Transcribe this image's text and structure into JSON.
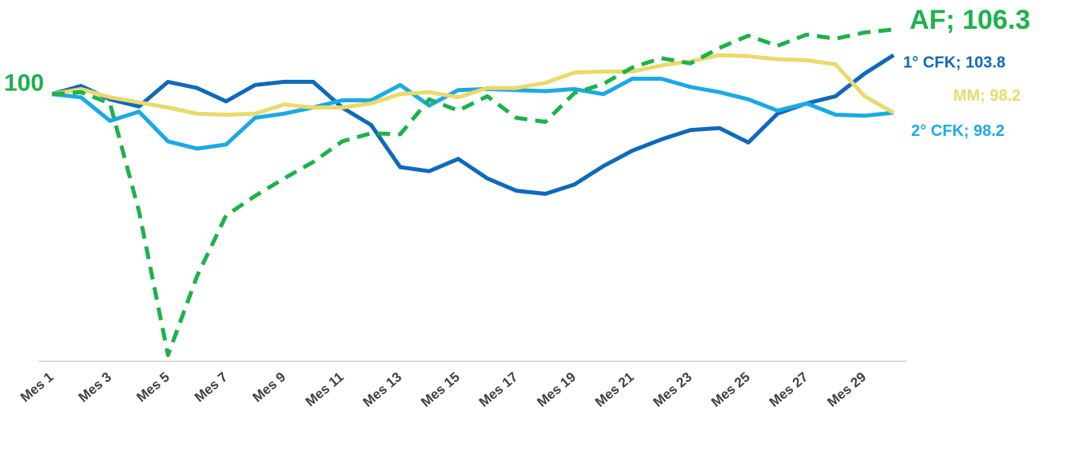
{
  "chart_data": {
    "type": "line",
    "categories": [
      "Mes 1",
      null,
      "Mes 3",
      null,
      "Mes 5",
      null,
      "Mes 7",
      null,
      "Mes 9",
      null,
      "Mes 11",
      null,
      "Mes 13",
      null,
      "Mes 15",
      null,
      "Mes 17",
      null,
      "Mes 19",
      null,
      "Mes 21",
      null,
      "Mes 23",
      null,
      "Mes 25",
      null,
      "Mes 27",
      null,
      "Mes 29",
      null
    ],
    "ylim": [
      74,
      108
    ],
    "series": [
      {
        "name": "1° CFK",
        "color": "#0f69bb",
        "values": [
          100,
          100.8,
          99.5,
          98.8,
          101.2,
          100.6,
          99.3,
          100.9,
          101.2,
          101.2,
          98.7,
          97.0,
          92.9,
          92.5,
          93.7,
          91.8,
          90.6,
          90.3,
          91.2,
          93.0,
          94.5,
          95.6,
          96.5,
          96.7,
          95.3,
          98.1,
          99.1,
          99.8,
          102.0,
          103.8
        ],
        "value_labels": [
          null,
          null,
          null,
          null,
          null,
          null,
          null,
          null,
          null,
          null,
          null,
          null,
          null,
          null,
          null,
          null,
          null,
          null,
          null,
          null,
          null,
          null,
          null,
          null,
          null,
          null,
          null,
          null,
          null,
          "1° CFK;  103.8"
        ]
      },
      {
        "name": "2° CFK",
        "color": "#1ba9e6",
        "values": [
          100,
          99.7,
          97.4,
          98.3,
          95.4,
          94.7,
          95.1,
          97.7,
          98.1,
          98.7,
          99.4,
          99.4,
          100.9,
          98.9,
          100.4,
          100.5,
          100.4,
          100.3,
          100.5,
          100.0,
          101.5,
          101.5,
          100.7,
          100.2,
          99.5,
          98.4,
          99.1,
          98.0,
          97.9,
          98.2
        ],
        "value_labels": [
          null,
          null,
          null,
          null,
          null,
          null,
          null,
          null,
          null,
          null,
          null,
          null,
          null,
          null,
          null,
          null,
          null,
          null,
          null,
          null,
          null,
          null,
          null,
          null,
          null,
          null,
          null,
          null,
          null,
          "2° CFK;  98.2"
        ]
      },
      {
        "name": "MM",
        "color": "#e9da6b",
        "values": [
          100,
          100.5,
          99.7,
          99.2,
          98.7,
          98.1,
          98.0,
          98.1,
          99.0,
          98.7,
          98.7,
          99.1,
          100,
          100.2,
          99.7,
          100.6,
          100.6,
          101.1,
          102.1,
          102.2,
          102.2,
          102.8,
          103.2,
          103.8,
          103.7,
          103.4,
          103.3,
          102.9,
          99.8,
          98.2
        ],
        "value_labels": [
          null,
          null,
          null,
          null,
          null,
          null,
          null,
          null,
          null,
          null,
          null,
          null,
          null,
          null,
          null,
          null,
          null,
          null,
          null,
          null,
          null,
          null,
          null,
          null,
          null,
          null,
          null,
          null,
          null,
          "MM;  98.2"
        ]
      },
      {
        "name": "AF",
        "color": "#1db24b",
        "dashed": true,
        "values": [
          100,
          100.2,
          99.1,
          88.6,
          74.6,
          82.3,
          88.2,
          90.1,
          91.8,
          93.4,
          95.4,
          96.2,
          96.1,
          99.5,
          98.4,
          99.8,
          97.7,
          97.3,
          100.1,
          101.0,
          102.6,
          103.5,
          103.0,
          104.5,
          105.7,
          104.7,
          105.8,
          105.4,
          106.0,
          106.3
        ],
        "value_labels": [
          "100",
          null,
          null,
          null,
          null,
          null,
          null,
          null,
          null,
          null,
          null,
          null,
          null,
          null,
          null,
          null,
          null,
          null,
          null,
          null,
          null,
          null,
          null,
          null,
          null,
          null,
          null,
          null,
          null,
          "AF;  106.3"
        ]
      }
    ]
  }
}
